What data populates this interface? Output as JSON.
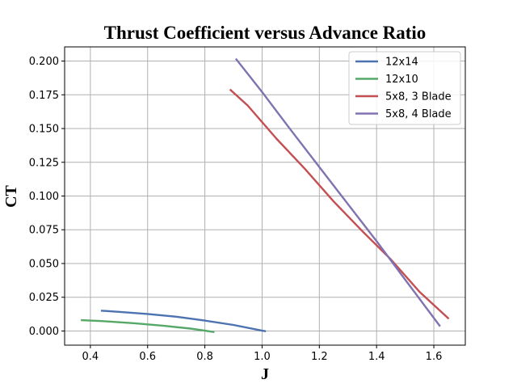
{
  "chart_data": {
    "type": "line",
    "title": "Thrust Coefficient versus Advance Ratio",
    "xlabel": "J",
    "ylabel": "CT",
    "xlim": [
      0.31,
      1.71
    ],
    "ylim": [
      -0.0105,
      0.2105
    ],
    "x_ticks": [
      0.4,
      0.6,
      0.8,
      1.0,
      1.2,
      1.4,
      1.6
    ],
    "x_tick_labels": [
      "0.4",
      "0.6",
      "0.8",
      "1.0",
      "1.2",
      "1.4",
      "1.6"
    ],
    "y_ticks": [
      0.0,
      0.025,
      0.05,
      0.075,
      0.1,
      0.125,
      0.15,
      0.175,
      0.2
    ],
    "y_tick_labels": [
      "0.000",
      "0.025",
      "0.050",
      "0.075",
      "0.100",
      "0.125",
      "0.150",
      "0.175",
      "0.200"
    ],
    "grid": true,
    "legend_position": "top-right",
    "series": [
      {
        "name": "12x14",
        "color": "#4c72b0",
        "points": [
          [
            0.44,
            0.015
          ],
          [
            0.5,
            0.0142
          ],
          [
            0.6,
            0.0126
          ],
          [
            0.7,
            0.0106
          ],
          [
            0.8,
            0.0077
          ],
          [
            0.9,
            0.0045
          ],
          [
            1.0,
            0.0002
          ],
          [
            1.01,
            -0.0001
          ]
        ]
      },
      {
        "name": "12x10",
        "color": "#55a868",
        "points": [
          [
            0.37,
            0.008
          ],
          [
            0.45,
            0.0072
          ],
          [
            0.55,
            0.0058
          ],
          [
            0.65,
            0.004
          ],
          [
            0.75,
            0.0018
          ],
          [
            0.83,
            -0.0007
          ]
        ]
      },
      {
        "name": "5x8, 3 Blade",
        "color": "#c44e52",
        "points": [
          [
            0.89,
            0.1785
          ],
          [
            0.95,
            0.167
          ],
          [
            1.05,
            0.1425
          ],
          [
            1.15,
            0.12
          ],
          [
            1.25,
            0.096
          ],
          [
            1.35,
            0.074
          ],
          [
            1.45,
            0.053
          ],
          [
            1.55,
            0.029
          ],
          [
            1.65,
            0.0095
          ]
        ]
      },
      {
        "name": "5x8, 4 Blade",
        "color": "#8172b2",
        "points": [
          [
            0.91,
            0.2012
          ],
          [
            1.0,
            0.177
          ],
          [
            1.1,
            0.149
          ],
          [
            1.2,
            0.1215
          ],
          [
            1.3,
            0.094
          ],
          [
            1.4,
            0.0665
          ],
          [
            1.5,
            0.038
          ],
          [
            1.62,
            0.004
          ]
        ]
      }
    ]
  }
}
